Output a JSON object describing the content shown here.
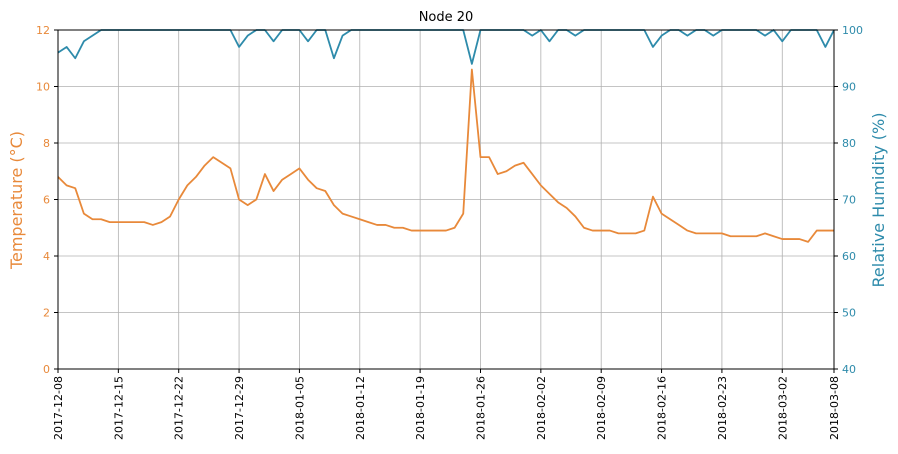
{
  "chart_data": {
    "type": "line",
    "title": "Node 20",
    "ylabel": "Temperature (°C)",
    "y2label": "Relative Humidity (%)",
    "x": [
      "2017-12-08",
      "2017-12-09",
      "2017-12-10",
      "2017-12-11",
      "2017-12-12",
      "2017-12-13",
      "2017-12-14",
      "2017-12-15",
      "2017-12-16",
      "2017-12-17",
      "2017-12-18",
      "2017-12-19",
      "2017-12-20",
      "2017-12-21",
      "2017-12-22",
      "2017-12-23",
      "2017-12-24",
      "2017-12-25",
      "2017-12-26",
      "2017-12-27",
      "2017-12-28",
      "2017-12-29",
      "2017-12-30",
      "2017-12-31",
      "2018-01-01",
      "2018-01-02",
      "2018-01-03",
      "2018-01-04",
      "2018-01-05",
      "2018-01-06",
      "2018-01-07",
      "2018-01-08",
      "2018-01-09",
      "2018-01-10",
      "2018-01-11",
      "2018-01-12",
      "2018-01-13",
      "2018-01-14",
      "2018-01-15",
      "2018-01-16",
      "2018-01-17",
      "2018-01-18",
      "2018-01-19",
      "2018-01-20",
      "2018-01-21",
      "2018-01-22",
      "2018-01-23",
      "2018-01-24",
      "2018-01-25",
      "2018-01-26",
      "2018-01-27",
      "2018-01-28",
      "2018-01-29",
      "2018-01-30",
      "2018-01-31",
      "2018-02-01",
      "2018-02-02",
      "2018-02-03",
      "2018-02-04",
      "2018-02-05",
      "2018-02-06",
      "2018-02-07",
      "2018-02-08",
      "2018-02-09",
      "2018-02-10",
      "2018-02-11",
      "2018-02-12",
      "2018-02-13",
      "2018-02-14",
      "2018-02-15",
      "2018-02-16",
      "2018-02-17",
      "2018-02-18",
      "2018-02-19",
      "2018-02-20",
      "2018-02-21",
      "2018-02-22",
      "2018-02-23",
      "2018-02-24",
      "2018-02-25",
      "2018-02-26",
      "2018-02-27",
      "2018-02-28",
      "2018-03-01",
      "2018-03-02",
      "2018-03-03",
      "2018-03-04",
      "2018-03-05",
      "2018-03-06",
      "2018-03-07",
      "2018-03-08"
    ],
    "series": [
      {
        "name": "Temperature",
        "color": "#e8893a",
        "axis": "y",
        "values": [
          6.8,
          6.5,
          6.4,
          5.5,
          5.3,
          5.3,
          5.2,
          5.2,
          5.2,
          5.2,
          5.2,
          5.1,
          5.2,
          5.4,
          6.0,
          6.5,
          6.8,
          7.2,
          7.5,
          7.3,
          7.1,
          6.0,
          5.8,
          6.0,
          6.9,
          6.3,
          6.7,
          6.9,
          7.1,
          6.7,
          6.4,
          6.3,
          5.8,
          5.5,
          5.4,
          5.3,
          5.2,
          5.1,
          5.1,
          5.0,
          5.0,
          4.9,
          4.9,
          4.9,
          4.9,
          4.9,
          5.0,
          5.5,
          10.6,
          7.5,
          7.5,
          6.9,
          7.0,
          7.2,
          7.3,
          6.9,
          6.5,
          6.2,
          5.9,
          5.7,
          5.4,
          5.0,
          4.9,
          4.9,
          4.9,
          4.8,
          4.8,
          4.8,
          4.9,
          6.1,
          5.5,
          5.3,
          5.1,
          4.9,
          4.8,
          4.8,
          4.8,
          4.8,
          4.7,
          4.7,
          4.7,
          4.7,
          4.8,
          4.7,
          4.6,
          4.6,
          4.6,
          4.5,
          4.9,
          4.9,
          4.9
        ]
      },
      {
        "name": "Relative Humidity",
        "color": "#2e8bab",
        "axis": "y2",
        "values": [
          96,
          97,
          95,
          98,
          99,
          100,
          100,
          100,
          100,
          100,
          100,
          100,
          100,
          100,
          100,
          100,
          100,
          100,
          100,
          100,
          100,
          97,
          99,
          100,
          100,
          98,
          100,
          100,
          100,
          98,
          100,
          100,
          95,
          99,
          100,
          100,
          100,
          100,
          100,
          100,
          100,
          100,
          100,
          100,
          100,
          100,
          100,
          100,
          94,
          100,
          100,
          100,
          100,
          100,
          100,
          99,
          100,
          98,
          100,
          100,
          99,
          100,
          100,
          100,
          100,
          100,
          100,
          100,
          100,
          97,
          99,
          100,
          100,
          99,
          100,
          100,
          99,
          100,
          100,
          100,
          100,
          100,
          99,
          100,
          98,
          100,
          100,
          100,
          100,
          97,
          100
        ]
      }
    ],
    "xlim": [
      "2017-12-08",
      "2018-03-08"
    ],
    "xticks": [
      "2017-12-08",
      "2017-12-15",
      "2017-12-22",
      "2017-12-29",
      "2018-01-05",
      "2018-01-12",
      "2018-01-19",
      "2018-01-26",
      "2018-02-02",
      "2018-02-09",
      "2018-02-16",
      "2018-02-23",
      "2018-03-02",
      "2018-03-08"
    ],
    "ylim": [
      0,
      12
    ],
    "yticks": [
      0,
      2,
      4,
      6,
      8,
      10,
      12
    ],
    "y2lim": [
      40,
      100
    ],
    "y2ticks": [
      40,
      50,
      60,
      70,
      80,
      90,
      100
    ],
    "grid": true
  }
}
